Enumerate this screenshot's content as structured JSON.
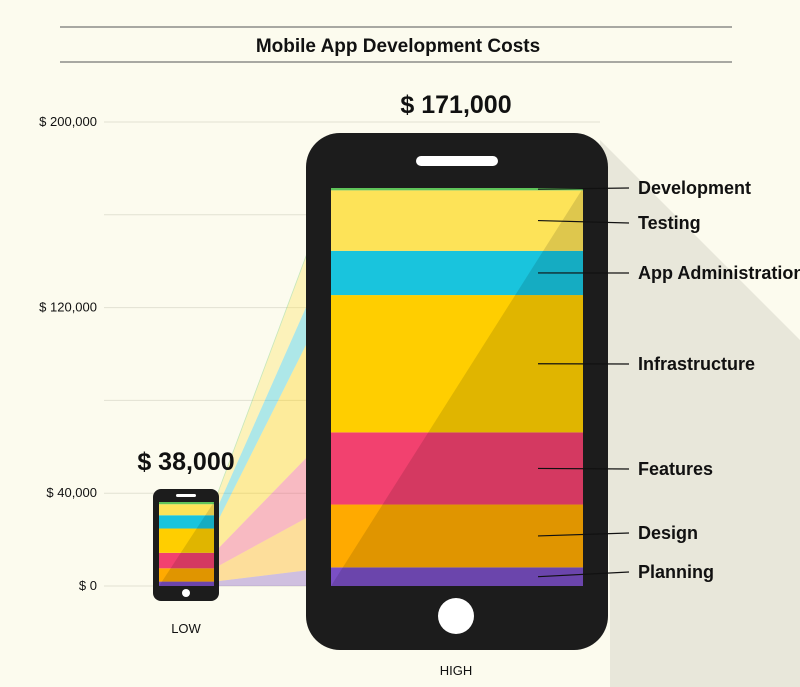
{
  "chart_data": {
    "type": "bar",
    "title": "Mobile App Development Costs",
    "categories": [
      "LOW",
      "HIGH"
    ],
    "totals": [
      "$ 38,000",
      "$ 171,000"
    ],
    "yticks": [
      {
        "value": 200000,
        "label": "$ 200,000"
      },
      {
        "value": 120000,
        "label": "$ 120,000"
      },
      {
        "value": 40000,
        "label": "$ 40,000"
      },
      {
        "value": 0,
        "label": "$ 0"
      }
    ],
    "ylim": [
      0,
      200000
    ],
    "series": [
      {
        "name": "Planning",
        "color": "#7a4fc4",
        "values": [
          2000,
          8000
        ]
      },
      {
        "name": "Design",
        "color": "#ffaa00",
        "values": [
          6000,
          27000
        ]
      },
      {
        "name": "Features",
        "color": "#f2416f",
        "values": [
          7000,
          31000
        ]
      },
      {
        "name": "Infrastructure",
        "color": "#ffce00",
        "values": [
          11000,
          59000
        ]
      },
      {
        "name": "App Administration",
        "color": "#19c4dd",
        "values": [
          6000,
          19000
        ]
      },
      {
        "name": "Testing",
        "color": "#fde358",
        "values": [
          5000,
          26000
        ]
      },
      {
        "name": "Development",
        "color": "#5fc45a",
        "values": [
          1000,
          1000
        ]
      }
    ]
  }
}
